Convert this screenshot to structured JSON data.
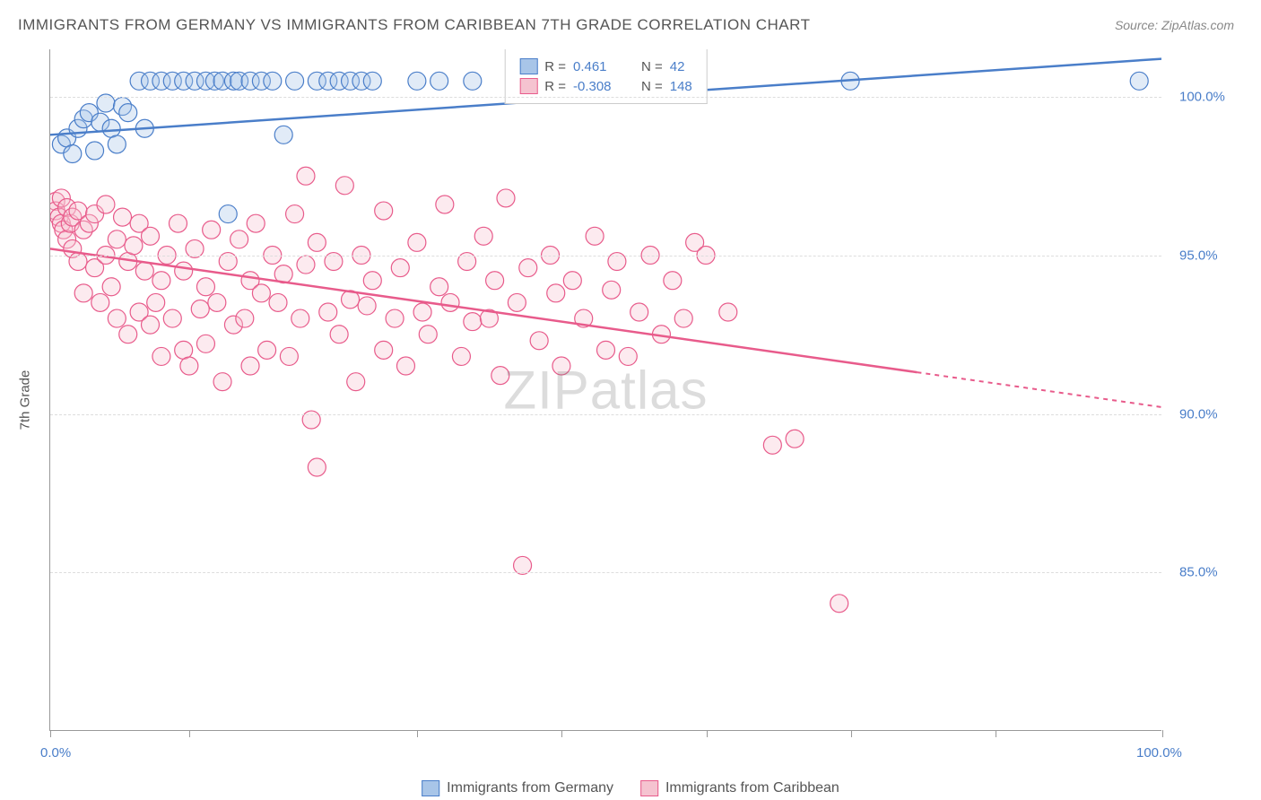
{
  "title": "IMMIGRANTS FROM GERMANY VS IMMIGRANTS FROM CARIBBEAN 7TH GRADE CORRELATION CHART",
  "source": "Source: ZipAtlas.com",
  "ylabel": "7th Grade",
  "watermark_bold": "ZIP",
  "watermark_thin": "atlas",
  "xlim": [
    0,
    100
  ],
  "ylim": [
    80,
    101.5
  ],
  "xtick_labels": {
    "left": "0.0%",
    "right": "100.0%"
  },
  "xtick_positions_pct": [
    0,
    12.5,
    33,
    46,
    59,
    72,
    85,
    100
  ],
  "yticks": [
    {
      "v": 100,
      "label": "100.0%"
    },
    {
      "v": 95,
      "label": "95.0%"
    },
    {
      "v": 90,
      "label": "90.0%"
    },
    {
      "v": 85,
      "label": "85.0%"
    }
  ],
  "colors": {
    "blue_fill": "#a8c5e8",
    "blue_stroke": "#4a7ec9",
    "pink_fill": "#f5c3d0",
    "pink_stroke": "#e85b8b",
    "text_blue": "#4a7ec9",
    "grid": "#dddddd",
    "axis": "#999999"
  },
  "series": [
    {
      "name": "Immigrants from Germany",
      "color_key": "blue",
      "R": "0.461",
      "N": "42",
      "trend": {
        "x1": 0,
        "y1": 98.8,
        "x2": 100,
        "y2": 101.2,
        "dash_from_x": null
      },
      "points": [
        [
          1,
          98.5
        ],
        [
          1.5,
          98.7
        ],
        [
          2,
          98.2
        ],
        [
          2.5,
          99.0
        ],
        [
          3,
          99.3
        ],
        [
          3.5,
          99.5
        ],
        [
          4,
          98.3
        ],
        [
          4.5,
          99.2
        ],
        [
          5,
          99.8
        ],
        [
          5.5,
          99.0
        ],
        [
          6,
          98.5
        ],
        [
          6.5,
          99.7
        ],
        [
          7,
          99.5
        ],
        [
          8,
          100.5
        ],
        [
          8.5,
          99.0
        ],
        [
          9,
          100.5
        ],
        [
          10,
          100.5
        ],
        [
          11,
          100.5
        ],
        [
          12,
          100.5
        ],
        [
          13,
          100.5
        ],
        [
          14,
          100.5
        ],
        [
          14.8,
          100.5
        ],
        [
          15.5,
          100.5
        ],
        [
          16.5,
          100.5
        ],
        [
          17,
          100.5
        ],
        [
          18,
          100.5
        ],
        [
          19,
          100.5
        ],
        [
          20,
          100.5
        ],
        [
          21,
          98.8
        ],
        [
          22,
          100.5
        ],
        [
          24,
          100.5
        ],
        [
          25,
          100.5
        ],
        [
          26,
          100.5
        ],
        [
          27,
          100.5
        ],
        [
          28,
          100.5
        ],
        [
          29,
          100.5
        ],
        [
          33,
          100.5
        ],
        [
          35,
          100.5
        ],
        [
          38,
          100.5
        ],
        [
          43,
          100.5
        ],
        [
          72,
          100.5
        ],
        [
          98,
          100.5
        ],
        [
          16,
          96.3
        ]
      ]
    },
    {
      "name": "Immigrants from Caribbean",
      "color_key": "pink",
      "R": "-0.308",
      "N": "148",
      "trend": {
        "x1": 0,
        "y1": 95.2,
        "x2": 100,
        "y2": 90.2,
        "dash_from_x": 78
      },
      "points": [
        [
          0.5,
          96.7
        ],
        [
          0.5,
          96.4
        ],
        [
          0.8,
          96.2
        ],
        [
          1,
          96.0
        ],
        [
          1,
          96.8
        ],
        [
          1.2,
          95.8
        ],
        [
          1.5,
          96.5
        ],
        [
          1.5,
          95.5
        ],
        [
          1.8,
          96.0
        ],
        [
          2,
          96.2
        ],
        [
          2,
          95.2
        ],
        [
          2.5,
          96.4
        ],
        [
          2.5,
          94.8
        ],
        [
          3,
          95.8
        ],
        [
          3,
          93.8
        ],
        [
          3.5,
          96.0
        ],
        [
          4,
          94.6
        ],
        [
          4,
          96.3
        ],
        [
          4.5,
          93.5
        ],
        [
          5,
          95.0
        ],
        [
          5,
          96.6
        ],
        [
          5.5,
          94.0
        ],
        [
          6,
          95.5
        ],
        [
          6,
          93.0
        ],
        [
          6.5,
          96.2
        ],
        [
          7,
          94.8
        ],
        [
          7,
          92.5
        ],
        [
          7.5,
          95.3
        ],
        [
          8,
          93.2
        ],
        [
          8,
          96.0
        ],
        [
          8.5,
          94.5
        ],
        [
          9,
          92.8
        ],
        [
          9,
          95.6
        ],
        [
          9.5,
          93.5
        ],
        [
          10,
          94.2
        ],
        [
          10,
          91.8
        ],
        [
          10.5,
          95.0
        ],
        [
          11,
          93.0
        ],
        [
          11.5,
          96.0
        ],
        [
          12,
          92.0
        ],
        [
          12,
          94.5
        ],
        [
          12.5,
          91.5
        ],
        [
          13,
          95.2
        ],
        [
          13.5,
          93.3
        ],
        [
          14,
          94.0
        ],
        [
          14,
          92.2
        ],
        [
          14.5,
          95.8
        ],
        [
          15,
          93.5
        ],
        [
          15.5,
          91.0
        ],
        [
          16,
          94.8
        ],
        [
          16.5,
          92.8
        ],
        [
          17,
          95.5
        ],
        [
          17.5,
          93.0
        ],
        [
          18,
          94.2
        ],
        [
          18,
          91.5
        ],
        [
          18.5,
          96.0
        ],
        [
          19,
          93.8
        ],
        [
          19.5,
          92.0
        ],
        [
          20,
          95.0
        ],
        [
          20.5,
          93.5
        ],
        [
          21,
          94.4
        ],
        [
          21.5,
          91.8
        ],
        [
          22,
          96.3
        ],
        [
          22.5,
          93.0
        ],
        [
          23,
          94.7
        ],
        [
          23,
          97.5
        ],
        [
          23.5,
          89.8
        ],
        [
          24,
          95.4
        ],
        [
          24,
          88.3
        ],
        [
          25,
          93.2
        ],
        [
          25.5,
          94.8
        ],
        [
          26,
          92.5
        ],
        [
          26.5,
          97.2
        ],
        [
          27,
          93.6
        ],
        [
          27.5,
          91.0
        ],
        [
          28,
          95.0
        ],
        [
          28.5,
          93.4
        ],
        [
          29,
          94.2
        ],
        [
          30,
          92.0
        ],
        [
          30,
          96.4
        ],
        [
          31,
          93.0
        ],
        [
          31.5,
          94.6
        ],
        [
          32,
          91.5
        ],
        [
          33,
          95.4
        ],
        [
          33.5,
          93.2
        ],
        [
          34,
          92.5
        ],
        [
          35,
          94.0
        ],
        [
          35.5,
          96.6
        ],
        [
          36,
          93.5
        ],
        [
          37,
          91.8
        ],
        [
          37.5,
          94.8
        ],
        [
          38,
          92.9
        ],
        [
          39,
          95.6
        ],
        [
          39.5,
          93.0
        ],
        [
          40,
          94.2
        ],
        [
          40.5,
          91.2
        ],
        [
          41,
          96.8
        ],
        [
          42,
          93.5
        ],
        [
          42.5,
          85.2
        ],
        [
          43,
          94.6
        ],
        [
          44,
          92.3
        ],
        [
          45,
          95.0
        ],
        [
          45.5,
          93.8
        ],
        [
          46,
          91.5
        ],
        [
          47,
          94.2
        ],
        [
          48,
          93.0
        ],
        [
          49,
          95.6
        ],
        [
          50,
          92.0
        ],
        [
          50.5,
          93.9
        ],
        [
          51,
          94.8
        ],
        [
          52,
          91.8
        ],
        [
          53,
          93.2
        ],
        [
          54,
          95.0
        ],
        [
          55,
          92.5
        ],
        [
          56,
          94.2
        ],
        [
          57,
          93.0
        ],
        [
          58,
          95.4
        ],
        [
          59,
          95.0
        ],
        [
          61,
          93.2
        ],
        [
          65,
          89.0
        ],
        [
          67,
          89.2
        ],
        [
          71,
          84.0
        ]
      ]
    }
  ],
  "stats_labels": {
    "R": "R =",
    "N": "N ="
  }
}
